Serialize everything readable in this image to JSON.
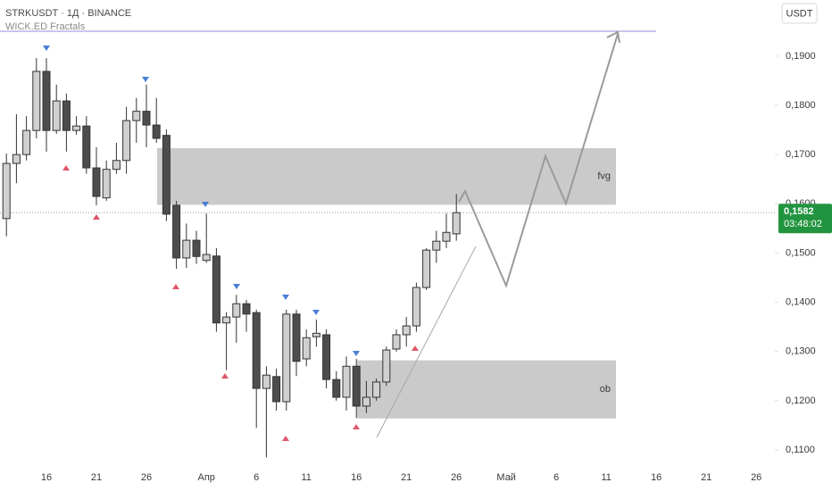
{
  "chart_data": {
    "type": "candlestick",
    "title": "STRKUSDT · 1Д · BINANCE",
    "subtitle": "WICK.ED Fractals",
    "currency": "USDT",
    "categories": [
      null,
      null,
      null,
      null,
      "16",
      null,
      null,
      null,
      null,
      "21",
      null,
      null,
      null,
      null,
      "26",
      null,
      null,
      null,
      null,
      null,
      "Апр",
      null,
      null,
      null,
      null,
      "6",
      null,
      null,
      null,
      null,
      "11",
      null,
      null,
      null,
      null,
      "16",
      null,
      null,
      null,
      null,
      "21",
      null,
      null,
      null,
      null,
      "26",
      null,
      null,
      null,
      null,
      "Май",
      null,
      null,
      null,
      null,
      "6",
      null,
      null,
      null,
      null,
      "11",
      null,
      null,
      null,
      null,
      "16",
      null,
      null,
      null,
      null,
      "21",
      null,
      null,
      null,
      null,
      "26",
      null
    ],
    "open": [
      0.157,
      0.1682,
      0.17,
      0.1749,
      0.1869,
      0.1749,
      0.1809,
      0.1749,
      0.1758,
      0.1673,
      0.1612,
      0.167,
      0.1688,
      0.1769,
      0.1788,
      0.176,
      0.1739,
      0.1597,
      0.149,
      0.1526,
      0.1485,
      0.1494,
      0.1358,
      0.137,
      0.1397,
      0.1379,
      0.1225,
      0.1249,
      0.1198,
      0.1376,
      0.1285,
      0.133,
      0.1334,
      0.1243,
      0.1207,
      0.127,
      0.1189,
      0.1207,
      0.1238,
      0.1305,
      0.1334,
      0.1352,
      0.143,
      0.1506,
      0.1524,
      0.1539,
      null,
      null,
      null,
      null,
      null,
      null,
      null,
      null,
      null,
      null,
      null,
      null,
      null,
      null,
      null,
      null,
      null,
      null,
      null,
      null,
      null,
      null,
      null,
      null,
      null,
      null,
      null,
      null,
      null,
      null,
      null
    ],
    "high": [
      0.1702,
      0.1782,
      0.1778,
      0.1896,
      0.1896,
      0.1842,
      0.1824,
      0.1778,
      0.1778,
      0.1715,
      0.1688,
      0.1724,
      0.1797,
      0.1815,
      0.1842,
      0.1815,
      0.1751,
      0.1606,
      0.156,
      0.1545,
      0.158,
      0.151,
      0.138,
      0.1415,
      0.1405,
      0.1385,
      0.127,
      0.1265,
      0.1385,
      0.1385,
      0.1345,
      0.1365,
      0.1345,
      0.126,
      0.129,
      0.1285,
      0.124,
      0.1245,
      0.131,
      0.1345,
      0.137,
      0.144,
      0.151,
      0.1545,
      0.158,
      0.162,
      null,
      null,
      null,
      null,
      null,
      null,
      null,
      null,
      null,
      null,
      null,
      null,
      null,
      null,
      null,
      null,
      null,
      null,
      null,
      null,
      null,
      null,
      null,
      null,
      null,
      null,
      null,
      null,
      null,
      null,
      null
    ],
    "low": [
      0.1534,
      0.1642,
      0.1688,
      0.1733,
      0.1706,
      0.1742,
      0.1706,
      0.174,
      0.1661,
      0.1597,
      0.1606,
      0.1661,
      0.1661,
      0.1724,
      0.1715,
      0.1724,
      0.1565,
      0.1468,
      0.147,
      0.1478,
      0.148,
      0.134,
      0.1262,
      0.1318,
      0.134,
      0.1145,
      0.1085,
      0.118,
      0.118,
      0.125,
      0.127,
      0.131,
      0.1225,
      0.12,
      0.118,
      0.1165,
      0.1175,
      0.12,
      0.123,
      0.13,
      0.131,
      0.134,
      0.1425,
      0.148,
      0.151,
      0.1525,
      null,
      null,
      null,
      null,
      null,
      null,
      null,
      null,
      null,
      null,
      null,
      null,
      null,
      null,
      null,
      null,
      null,
      null,
      null,
      null,
      null,
      null,
      null,
      null,
      null,
      null,
      null,
      null,
      null,
      null,
      null
    ],
    "close": [
      0.1682,
      0.17,
      0.1749,
      0.1869,
      0.1749,
      0.1809,
      0.1749,
      0.1758,
      0.1673,
      0.1615,
      0.167,
      0.1688,
      0.1769,
      0.1788,
      0.176,
      0.1733,
      0.1579,
      0.149,
      0.1526,
      0.1493,
      0.1497,
      0.1358,
      0.137,
      0.1397,
      0.1376,
      0.1225,
      0.1252,
      0.1198,
      0.1376,
      0.128,
      0.1328,
      0.1337,
      0.1243,
      0.1207,
      0.127,
      0.1189,
      0.1207,
      0.1238,
      0.1303,
      0.1334,
      0.1352,
      0.143,
      0.1506,
      0.1524,
      0.1542,
      0.1582,
      null,
      null,
      null,
      null,
      null,
      null,
      null,
      null,
      null,
      null,
      null,
      null,
      null,
      null,
      null,
      null,
      null,
      null,
      null,
      null,
      null,
      null,
      null,
      null,
      null,
      null,
      null,
      null,
      null,
      null,
      null
    ],
    "up_color": "#d0d0d0",
    "down_color": "#4d4d4d",
    "ylim": [
      0.1071,
      0.2014
    ],
    "yticks": [
      {
        "value": 0.11,
        "label": "0,1100"
      },
      {
        "value": 0.12,
        "label": "0,1200"
      },
      {
        "value": 0.13,
        "label": "0,1300"
      },
      {
        "value": 0.14,
        "label": "0,1400"
      },
      {
        "value": 0.15,
        "label": "0,1500"
      },
      {
        "value": 0.16,
        "label": "0,1600"
      },
      {
        "value": 0.17,
        "label": "0,1700"
      },
      {
        "value": 0.18,
        "label": "0,1800"
      },
      {
        "value": 0.19,
        "label": "0,1900"
      }
    ],
    "last_price": {
      "value": 0.1582,
      "label": "0,1582"
    },
    "countdown": "03:48:02",
    "zones": [
      {
        "label": "fvg",
        "range": [
          0.1598,
          0.1713
        ]
      },
      {
        "label": "ob",
        "range": [
          0.1164,
          0.1282
        ]
      }
    ]
  }
}
